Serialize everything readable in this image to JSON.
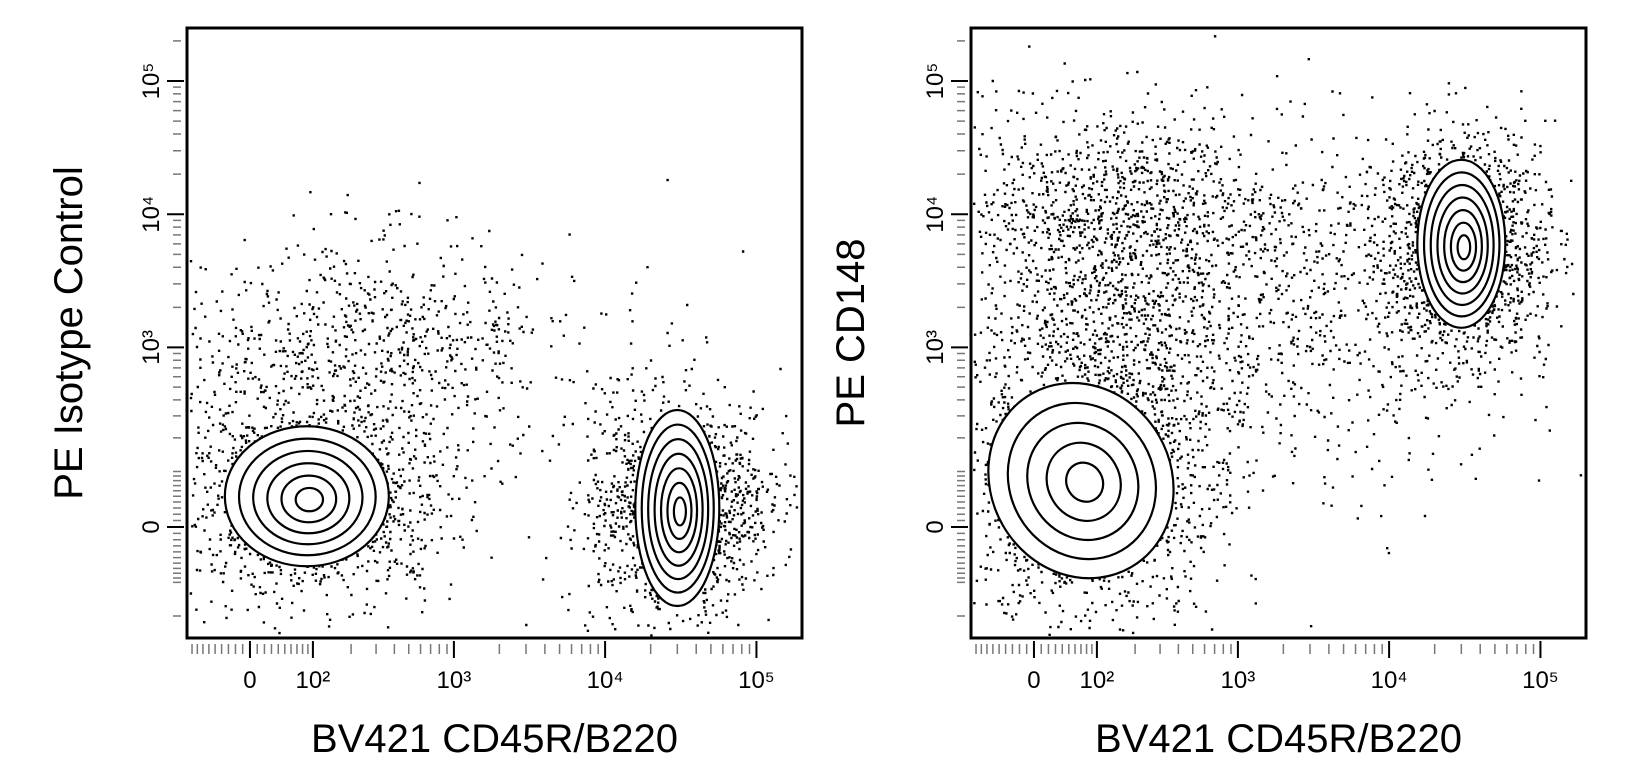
{
  "chart_data": [
    {
      "type": "contour",
      "x_label": "BV421 CD45R/B220",
      "y_label": "PE Isotype Control",
      "xscale": "biexponential",
      "yscale": "biexponential",
      "xlim": [
        -100,
        200000
      ],
      "ylim": [
        -300,
        250000
      ],
      "xticks": [
        0,
        {
          "value": 100,
          "label": "10²"
        },
        {
          "value": 1000,
          "label": "10³"
        },
        {
          "value": 10000,
          "label": "10⁴"
        },
        {
          "value": 100000,
          "label": "10⁵"
        }
      ],
      "yticks": [
        0,
        {
          "value": 1000,
          "label": "10³"
        },
        {
          "value": 10000,
          "label": "10⁴"
        },
        {
          "value": 100000,
          "label": "10⁵"
        }
      ],
      "populations": [
        {
          "x": 88,
          "y": 50
        },
        {
          "x": 30000,
          "y": 30
        }
      ],
      "color": "#000000"
    },
    {
      "type": "contour",
      "x_label": "BV421 CD45R/B220",
      "y_label": "PE  CD148",
      "xscale": "biexponential",
      "yscale": "biexponential",
      "xlim": [
        -100,
        200000
      ],
      "ylim": [
        -300,
        250000
      ],
      "xticks": [
        0,
        {
          "value": 100,
          "label": "10²"
        },
        {
          "value": 1000,
          "label": "10³"
        },
        {
          "value": 10000,
          "label": "10⁴"
        },
        {
          "value": 100000,
          "label": "10⁵"
        }
      ],
      "yticks": [
        0,
        {
          "value": 1000,
          "label": "10³"
        },
        {
          "value": 10000,
          "label": "10⁴"
        },
        {
          "value": 100000,
          "label": "10⁵"
        }
      ],
      "populations": [
        {
          "x": 70,
          "y": 80
        },
        {
          "x": 30000,
          "y": 6000
        }
      ],
      "color": "#000000"
    }
  ]
}
